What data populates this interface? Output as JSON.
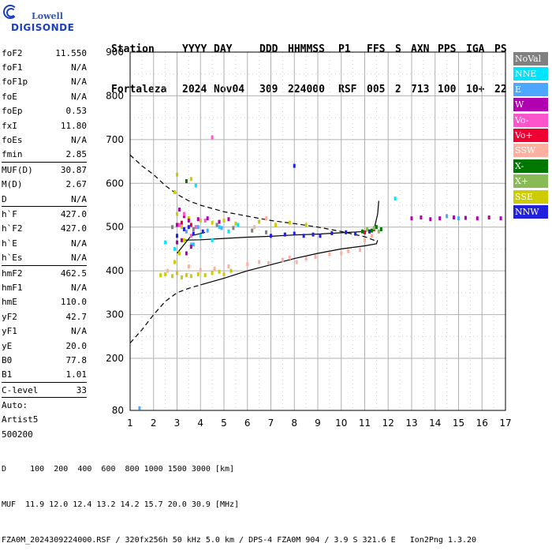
{
  "logo": {
    "line1": "Lowell",
    "line2": "DIGISONDE"
  },
  "header": {
    "row1": [
      "Station",
      "YYYY",
      "DAY",
      "DDD",
      "HHMMSS",
      "P1",
      "FFS",
      "S",
      "AXN",
      "PPS",
      "IGA",
      "PS"
    ],
    "row2": [
      "Fortaleza",
      "2024",
      "Nov04",
      "309",
      "224000",
      "RSF",
      "005",
      "2",
      "713",
      "100",
      "10+",
      "22"
    ]
  },
  "params": [
    {
      "k": "foF2",
      "v": "11.550"
    },
    {
      "k": "foF1",
      "v": "N/A"
    },
    {
      "k": "foF1p",
      "v": "N/A"
    },
    {
      "k": "foE",
      "v": "N/A"
    },
    {
      "k": "foEp",
      "v": "0.53"
    },
    {
      "k": "fxI",
      "v": "11.80"
    },
    {
      "k": "foEs",
      "v": "N/A"
    },
    {
      "k": "fmin",
      "v": "2.85"
    },
    {
      "k": "MUF(D)",
      "v": "30.87",
      "sep": true
    },
    {
      "k": "M(D)",
      "v": "2.67"
    },
    {
      "k": "D",
      "v": "N/A"
    },
    {
      "k": "h`F",
      "v": "427.0",
      "sep": true
    },
    {
      "k": "h`F2",
      "v": "427.0"
    },
    {
      "k": "h`E",
      "v": "N/A"
    },
    {
      "k": "h`Es",
      "v": "N/A"
    },
    {
      "k": "hmF2",
      "v": "462.5",
      "sep": true
    },
    {
      "k": "hmF1",
      "v": "N/A"
    },
    {
      "k": "hmE",
      "v": "110.0"
    },
    {
      "k": "yF2",
      "v": "42.7"
    },
    {
      "k": "yF1",
      "v": "N/A"
    },
    {
      "k": "yE",
      "v": "20.0"
    },
    {
      "k": "B0",
      "v": "77.8"
    },
    {
      "k": "B1",
      "v": "1.01"
    },
    {
      "k": "C-level",
      "v": "33",
      "sep": true
    },
    {
      "k": "Auto:",
      "v": "",
      "sep": true
    },
    {
      "k": "Artist5",
      "v": ""
    },
    {
      "k": "500200",
      "v": ""
    }
  ],
  "legend": [
    {
      "label": "NoVal",
      "color": "#808080"
    },
    {
      "label": "NNE",
      "color": "#00e5ff"
    },
    {
      "label": "E",
      "color": "#4da6ff"
    },
    {
      "label": "W",
      "color": "#b000b0"
    },
    {
      "label": "Vo-",
      "color": "#ff55cc"
    },
    {
      "label": "Vo+",
      "color": "#ee0033"
    },
    {
      "label": "SSW",
      "color": "#ffb0a0"
    },
    {
      "label": "X-",
      "color": "#007700"
    },
    {
      "label": "X+",
      "color": "#88bb55"
    },
    {
      "label": "SSE",
      "color": "#cccc00"
    },
    {
      "label": "NNW",
      "color": "#2020dd"
    }
  ],
  "bottom": {
    "line1": "D     100  200  400  600  800 1000 1500 3000 [km]",
    "line2": "MUF  11.9 12.0 12.4 13.2 14.2 15.7 20.0 30.9 [MHz]",
    "line3": "FZA0M_2024309224000.RSF / 320fx256h 50 kHz 5.0 km / DPS-4 FZA0M 904 / 3.9 S 321.6 E   Ion2Png 1.3.20"
  },
  "chart_data": {
    "type": "scatter",
    "xlim": [
      1,
      17
    ],
    "ylim": [
      80,
      900
    ],
    "x_ticks": [
      1,
      2,
      3,
      4,
      5,
      6,
      7,
      8,
      9,
      10,
      11,
      12,
      13,
      14,
      15,
      16,
      17
    ],
    "y_ticks": [
      80,
      200,
      300,
      400,
      500,
      600,
      700,
      800,
      900
    ],
    "grid": true,
    "legend_position": "right",
    "series": [
      {
        "name": "SSE",
        "color": "#cccc00",
        "points": [
          [
            2.3,
            390
          ],
          [
            2.5,
            392
          ],
          [
            2.8,
            388
          ],
          [
            3.0,
            395
          ],
          [
            3.2,
            385
          ],
          [
            3.4,
            390
          ],
          [
            3.6,
            388
          ],
          [
            3.9,
            392
          ],
          [
            4.2,
            390
          ],
          [
            4.5,
            395
          ],
          [
            4.8,
            398
          ],
          [
            5.0,
            392
          ],
          [
            5.3,
            400
          ],
          [
            2.9,
            420
          ],
          [
            3.1,
            440
          ],
          [
            3.3,
            470
          ],
          [
            3.0,
            530
          ],
          [
            3.2,
            500
          ],
          [
            3.5,
            520
          ],
          [
            4.0,
            515
          ],
          [
            4.5,
            510
          ],
          [
            5.0,
            515
          ],
          [
            5.5,
            508
          ],
          [
            6.5,
            512
          ],
          [
            7.2,
            505
          ],
          [
            7.8,
            510
          ],
          [
            8.5,
            505
          ],
          [
            3.0,
            620
          ],
          [
            2.9,
            580
          ],
          [
            3.6,
            610
          ]
        ]
      },
      {
        "name": "SSW",
        "color": "#ffb0a0",
        "points": [
          [
            2.6,
            400
          ],
          [
            3.5,
            410
          ],
          [
            4.0,
            402
          ],
          [
            4.6,
            405
          ],
          [
            5.2,
            410
          ],
          [
            6.0,
            415
          ],
          [
            6.5,
            420
          ],
          [
            6.9,
            418
          ],
          [
            7.5,
            425
          ],
          [
            7.8,
            430
          ],
          [
            8.1,
            420
          ],
          [
            8.5,
            428
          ],
          [
            8.9,
            432
          ],
          [
            9.5,
            438
          ],
          [
            10.0,
            440
          ],
          [
            10.3,
            445
          ],
          [
            10.8,
            448
          ],
          [
            6.3,
            500
          ],
          [
            6.8,
            520
          ],
          [
            11.0,
            470
          ],
          [
            11.3,
            480
          ]
        ]
      },
      {
        "name": "NNE",
        "color": "#00e5ff",
        "points": [
          [
            2.9,
            450
          ],
          [
            3.2,
            470
          ],
          [
            3.6,
            460
          ],
          [
            4.0,
            480
          ],
          [
            4.5,
            470
          ],
          [
            4.8,
            500
          ],
          [
            5.2,
            490
          ],
          [
            5.6,
            505
          ],
          [
            2.5,
            465
          ],
          [
            12.3,
            565
          ],
          [
            3.8,
            595
          ]
        ]
      },
      {
        "name": "E",
        "color": "#4da6ff",
        "points": [
          [
            3.0,
            480
          ],
          [
            3.4,
            490
          ],
          [
            3.9,
            500
          ],
          [
            4.3,
            492
          ],
          [
            4.9,
            498
          ],
          [
            3.7,
            460
          ],
          [
            14.5,
            525
          ],
          [
            15.0,
            520
          ],
          [
            1.4,
            85
          ]
        ]
      },
      {
        "name": "W",
        "color": "#b000b0",
        "points": [
          [
            3.0,
            505
          ],
          [
            3.1,
            540
          ],
          [
            3.3,
            525
          ],
          [
            3.5,
            515
          ],
          [
            3.9,
            518
          ],
          [
            4.3,
            520
          ],
          [
            4.8,
            512
          ],
          [
            5.2,
            518
          ],
          [
            3.0,
            465
          ],
          [
            3.2,
            470
          ],
          [
            3.4,
            440
          ],
          [
            3.6,
            455
          ],
          [
            13.0,
            520
          ],
          [
            13.4,
            522
          ],
          [
            13.8,
            518
          ],
          [
            14.2,
            520
          ],
          [
            14.8,
            522
          ],
          [
            15.3,
            521
          ],
          [
            15.8,
            520
          ],
          [
            16.3,
            522
          ],
          [
            16.8,
            520
          ]
        ]
      },
      {
        "name": "Vo-",
        "color": "#ff55cc",
        "points": [
          [
            3.1,
            505
          ],
          [
            3.3,
            530
          ],
          [
            3.8,
            500
          ],
          [
            4.2,
            515
          ],
          [
            4.5,
            705
          ],
          [
            3.6,
            480
          ]
        ]
      },
      {
        "name": "Vo+",
        "color": "#ee0033",
        "points": [
          [
            3.2,
            510
          ],
          [
            3.6,
            505
          ],
          [
            11.2,
            490
          ],
          [
            11.4,
            495
          ],
          [
            11.0,
            488
          ]
        ]
      },
      {
        "name": "X-",
        "color": "#007700",
        "points": [
          [
            3.4,
            605
          ],
          [
            10.9,
            490
          ],
          [
            11.3,
            492
          ],
          [
            11.5,
            500
          ],
          [
            11.7,
            495
          ]
        ]
      },
      {
        "name": "X+",
        "color": "#88bb55",
        "points": [
          [
            11.1,
            495
          ],
          [
            11.4,
            498
          ],
          [
            11.6,
            490
          ]
        ]
      },
      {
        "name": "NNW",
        "color": "#2020dd",
        "points": [
          [
            3.3,
            495
          ],
          [
            3.7,
            485
          ],
          [
            4.1,
            490
          ],
          [
            7.0,
            480
          ],
          [
            7.6,
            483
          ],
          [
            8.0,
            485
          ],
          [
            8.4,
            480
          ],
          [
            8.8,
            483
          ],
          [
            9.1,
            480
          ],
          [
            9.6,
            486
          ],
          [
            10.2,
            488
          ],
          [
            10.6,
            485
          ],
          [
            11.2,
            490
          ],
          [
            8.0,
            640
          ],
          [
            3.0,
            480
          ],
          [
            3.5,
            500
          ]
        ]
      },
      {
        "name": "NoVal",
        "color": "#808080",
        "points": [
          [
            2.8,
            500
          ],
          [
            3.7,
            495
          ],
          [
            4.7,
            505
          ],
          [
            5.4,
            498
          ],
          [
            6.2,
            492
          ],
          [
            6.8,
            488
          ]
        ]
      }
    ],
    "profile": [
      [
        3.2,
        470
      ],
      [
        4,
        471
      ],
      [
        5,
        474
      ],
      [
        6,
        477
      ],
      [
        7,
        479
      ],
      [
        8,
        482
      ],
      [
        9,
        484
      ],
      [
        10,
        487
      ],
      [
        11,
        490
      ],
      [
        11.4,
        495
      ],
      [
        11.55,
        530
      ],
      [
        11.6,
        560
      ]
    ],
    "trace_lower": [
      [
        3.0,
        440
      ],
      [
        3.3,
        460
      ],
      [
        3.6,
        480
      ],
      [
        4.2,
        488
      ]
    ],
    "dashed_upper": [
      [
        1,
        665
      ],
      [
        1.5,
        640
      ],
      [
        2,
        620
      ],
      [
        2.5,
        595
      ],
      [
        3,
        575
      ],
      [
        3.5,
        560
      ],
      [
        4,
        550
      ],
      [
        5,
        535
      ],
      [
        6,
        525
      ],
      [
        7,
        515
      ],
      [
        8,
        508
      ],
      [
        9,
        500
      ],
      [
        10,
        490
      ],
      [
        11,
        478
      ],
      [
        11.5,
        468
      ]
    ],
    "dashed_lower": [
      [
        1,
        235
      ],
      [
        1.5,
        265
      ],
      [
        2,
        300
      ],
      [
        2.5,
        330
      ],
      [
        3,
        350
      ],
      [
        3.5,
        360
      ],
      [
        4,
        368
      ]
    ],
    "solid_lower": [
      [
        4,
        368
      ],
      [
        5,
        383
      ],
      [
        6,
        400
      ],
      [
        7,
        414
      ],
      [
        8,
        428
      ],
      [
        9,
        440
      ],
      [
        10,
        450
      ],
      [
        11,
        457
      ],
      [
        11.5,
        462
      ],
      [
        11.55,
        470
      ]
    ]
  }
}
